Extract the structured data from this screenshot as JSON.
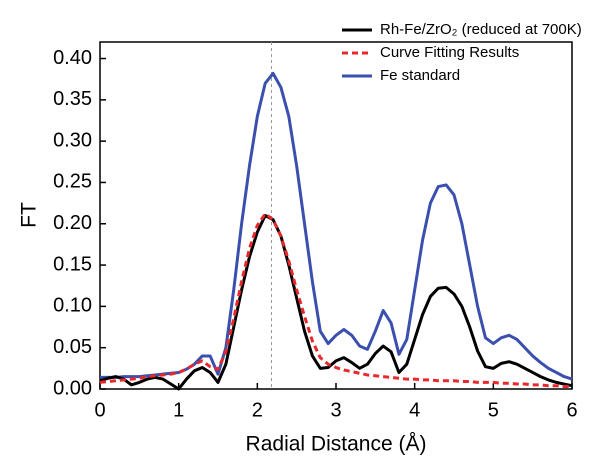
{
  "chart_data": {
    "type": "line",
    "x_label": "Radial Distance (Å)",
    "y_label": "FT",
    "xlim": [
      0,
      6
    ],
    "xticks": [
      0,
      1,
      2,
      3,
      4,
      5,
      6
    ],
    "ylim": [
      0,
      0.42
    ],
    "yticks": [
      {
        "value": 0,
        "label": "0.00"
      },
      0.05,
      {
        "value": 0.1,
        "label": "0.10"
      },
      0.15,
      {
        "value": 0.2,
        "label": "0.20"
      },
      0.25,
      {
        "value": 0.3,
        "label": "0.30"
      },
      0.35,
      {
        "value": 0.4,
        "label": "0.40"
      }
    ],
    "reference_line_x": 2.18,
    "legend": "top-right",
    "x": [
      0,
      0.1,
      0.2,
      0.3,
      0.4,
      0.5,
      0.6,
      0.7,
      0.8,
      0.9,
      1,
      1.1,
      1.2,
      1.3,
      1.4,
      1.5,
      1.6,
      1.7,
      1.8,
      1.9,
      2,
      2.1,
      2.2,
      2.3,
      2.4,
      2.5,
      2.6,
      2.7,
      2.8,
      2.9,
      3,
      3.1,
      3.2,
      3.3,
      3.4,
      3.5,
      3.6,
      3.7,
      3.8,
      3.9,
      4,
      4.1,
      4.2,
      4.3,
      4.4,
      4.5,
      4.6,
      4.7,
      4.8,
      4.9,
      5,
      5.1,
      5.2,
      5.3,
      5.4,
      5.5,
      5.6,
      5.7,
      5.8,
      5.9,
      6
    ],
    "series": [
      {
        "name": "Fe standard",
        "color": "#3a4fae",
        "style": "solid",
        "values": [
          0.014,
          0.014,
          0.014,
          0.015,
          0.015,
          0.015,
          0.016,
          0.017,
          0.018,
          0.019,
          0.02,
          0.024,
          0.03,
          0.04,
          0.04,
          0.018,
          0.05,
          0.12,
          0.2,
          0.27,
          0.33,
          0.37,
          0.382,
          0.365,
          0.33,
          0.27,
          0.2,
          0.13,
          0.07,
          0.055,
          0.065,
          0.072,
          0.065,
          0.052,
          0.048,
          0.07,
          0.095,
          0.08,
          0.042,
          0.06,
          0.12,
          0.18,
          0.225,
          0.245,
          0.247,
          0.235,
          0.2,
          0.15,
          0.1,
          0.062,
          0.055,
          0.062,
          0.065,
          0.06,
          0.05,
          0.04,
          0.032,
          0.025,
          0.02,
          0.015,
          0.012
        ]
      },
      {
        "name": "Rh-Fe/ZrO₂ (reduced at 700K)",
        "color": "#000000",
        "style": "solid",
        "values": [
          0.01,
          0.013,
          0.015,
          0.012,
          0.005,
          0.008,
          0.012,
          0.014,
          0.012,
          0.006,
          0,
          0.012,
          0.022,
          0.026,
          0.02,
          0.008,
          0.03,
          0.075,
          0.12,
          0.16,
          0.19,
          0.21,
          0.205,
          0.185,
          0.15,
          0.11,
          0.07,
          0.04,
          0.025,
          0.026,
          0.034,
          0.038,
          0.032,
          0.025,
          0.03,
          0.043,
          0.052,
          0.045,
          0.02,
          0.03,
          0.06,
          0.09,
          0.112,
          0.122,
          0.123,
          0.115,
          0.1,
          0.075,
          0.046,
          0.027,
          0.025,
          0.031,
          0.033,
          0.03,
          0.025,
          0.02,
          0.015,
          0.011,
          0.008,
          0.006,
          0.004
        ]
      },
      {
        "name": "Curve Fitting Results",
        "color": "#e8282b",
        "style": "dashed",
        "values": [
          0.008,
          0.009,
          0.01,
          0.011,
          0.012,
          0.013,
          0.015,
          0.016,
          0.017,
          0.018,
          0.02,
          0.024,
          0.03,
          0.034,
          0.027,
          0.024,
          0.045,
          0.085,
          0.13,
          0.17,
          0.198,
          0.212,
          0.205,
          0.185,
          0.155,
          0.12,
          0.088,
          0.058,
          0.038,
          0.03,
          0.026,
          0.023,
          0.021,
          0.019,
          0.017,
          0.016,
          0.015,
          0.014,
          0.013,
          0.012,
          0.012,
          0.011,
          0.011,
          0.01,
          0.01,
          0.01,
          0.009,
          0.009,
          0.008,
          0.008,
          0.008,
          0.007,
          0.007,
          0.006,
          0.006,
          0.005,
          0.005,
          0.004,
          0.004,
          0.003,
          0.003
        ]
      }
    ],
    "legend_order": [
      1,
      2,
      0
    ]
  }
}
